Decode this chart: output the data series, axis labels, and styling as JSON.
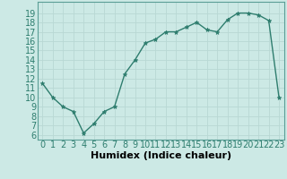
{
  "x": [
    0,
    1,
    2,
    3,
    4,
    5,
    6,
    7,
    8,
    9,
    10,
    11,
    12,
    13,
    14,
    15,
    16,
    17,
    18,
    19,
    20,
    21,
    22,
    23
  ],
  "y": [
    11.5,
    10.0,
    9.0,
    8.5,
    6.2,
    7.2,
    8.5,
    9.0,
    12.5,
    14.0,
    15.8,
    16.2,
    17.0,
    17.0,
    17.5,
    18.0,
    17.2,
    17.0,
    18.3,
    19.0,
    19.0,
    18.8,
    18.2,
    10.0
  ],
  "title": "",
  "xlabel": "Humidex (Indice chaleur)",
  "ylim": [
    5.5,
    20.2
  ],
  "xlim": [
    -0.5,
    23.5
  ],
  "line_color": "#2e7d6e",
  "bg_color": "#cce9e5",
  "grid_color": "#b8d8d4",
  "marker": "*",
  "xtick_labels": [
    "0",
    "1",
    "2",
    "3",
    "4",
    "5",
    "6",
    "7",
    "8",
    "9",
    "10",
    "11",
    "12",
    "13",
    "14",
    "15",
    "16",
    "17",
    "18",
    "19",
    "20",
    "21",
    "22",
    "23"
  ],
  "ytick_values": [
    6,
    7,
    8,
    9,
    10,
    11,
    12,
    13,
    14,
    15,
    16,
    17,
    18,
    19
  ],
  "xlabel_fontsize": 8,
  "tick_fontsize": 7
}
